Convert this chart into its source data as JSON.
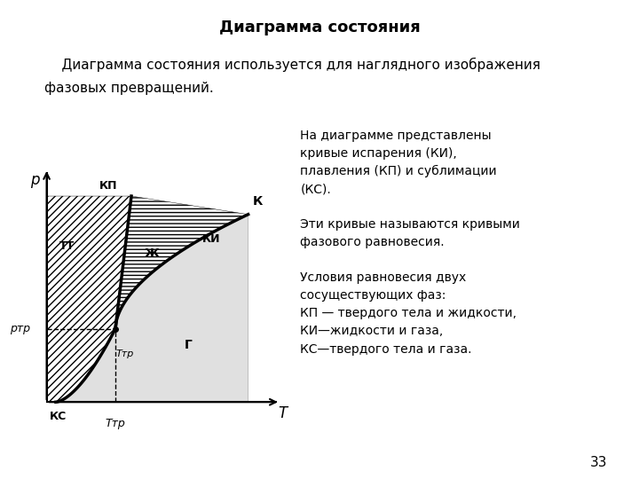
{
  "title": "Диаграмма состояния",
  "subtitle_line1": "    Диаграмма состояния используется для наглядного изображения",
  "subtitle_line2": "фазовых превращений.",
  "right_text_line1": "На диаграмме представлены",
  "right_text_line2": "кривые испарения (КИ),",
  "right_text_line3": "плавления (КП) и сублимации",
  "right_text_line4": "(КС).",
  "right_text_line5": "",
  "right_text_line6": "Эти кривые называются кривыми",
  "right_text_line7": "фазового равновесия.",
  "right_text_line8": "",
  "right_text_line9": "Условия равновесия двух",
  "right_text_line10": "сосуществующих фаз:",
  "right_text_line11": "КП — твердого тела и жидкости,",
  "right_text_line12": "КИ—жидкости и газа,",
  "right_text_line13": "КС—твердого тела и газа.",
  "page_number": "33",
  "background_color": "#ffffff",
  "text_color": "#000000",
  "y_axis_label": "р",
  "x_axis_label": "T",
  "y_triple_label": "ртр",
  "x_triple_label": "Tтр",
  "KP_label": "КП",
  "K_label": "К",
  "KI_label": "КИ",
  "KS_label": "КС",
  "TT_label": "ТТ",
  "ZH_label": "Ж",
  "G_label": "Г",
  "triple_label": "Ттр"
}
